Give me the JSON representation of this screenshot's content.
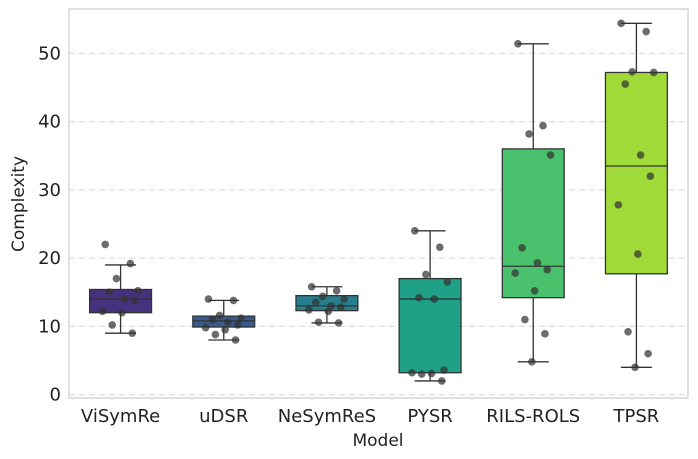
{
  "chart_data": {
    "type": "box",
    "xlabel": "Model",
    "ylabel": "Complexity",
    "ylim": [
      -0.5,
      56.5
    ],
    "yticks": [
      0,
      10,
      20,
      30,
      40,
      50
    ],
    "grid": "y-dashed",
    "series": [
      {
        "name": "ViSymRe",
        "color": "#46327e",
        "whisker_low": 9,
        "q1": 12,
        "median": 14,
        "q3": 15.4,
        "whisker_high": 19,
        "points": [
          22,
          19.2,
          17,
          15.2,
          15,
          14,
          13.8,
          12.2,
          12,
          10.2,
          9
        ]
      },
      {
        "name": "uDSR",
        "color": "#365c8d",
        "whisker_low": 8,
        "q1": 9.9,
        "median": 10.8,
        "q3": 11.5,
        "whisker_high": 13.8,
        "points": [
          14,
          13.8,
          11.6,
          11.2,
          11,
          10.6,
          10.2,
          9.8,
          9.5,
          8.8,
          8
        ]
      },
      {
        "name": "NeSymReS",
        "color": "#277f8e",
        "whisker_low": 10.5,
        "q1": 12.3,
        "median": 13,
        "q3": 14.5,
        "whisker_high": 15.8,
        "points": [
          15.8,
          15.2,
          14.4,
          14,
          13.5,
          13,
          12.8,
          12.4,
          12.2,
          10.6,
          10.5
        ]
      },
      {
        "name": "PYSR",
        "color": "#1fa187",
        "whisker_low": 2,
        "q1": 3.2,
        "median": 14,
        "q3": 17,
        "whisker_high": 24,
        "points": [
          24,
          21.6,
          17.6,
          16.5,
          14.2,
          14,
          3.6,
          3.2,
          3.1,
          3,
          2
        ]
      },
      {
        "name": "RILS-ROLS",
        "color": "#4ac16d",
        "whisker_low": 4.8,
        "q1": 14.2,
        "median": 18.8,
        "q3": 36,
        "whisker_high": 51.4,
        "points": [
          51.4,
          39.4,
          38.2,
          35.1,
          21.5,
          19.3,
          18.3,
          17.8,
          15.2,
          11,
          8.9,
          4.8
        ]
      },
      {
        "name": "TPSR",
        "color": "#a0da39",
        "whisker_low": 4,
        "q1": 17.7,
        "median": 33.5,
        "q3": 47.2,
        "whisker_high": 54.4,
        "points": [
          54.4,
          53.2,
          47.3,
          47.2,
          45.5,
          35.1,
          32,
          27.8,
          20.6,
          9.2,
          6,
          4
        ]
      }
    ]
  }
}
